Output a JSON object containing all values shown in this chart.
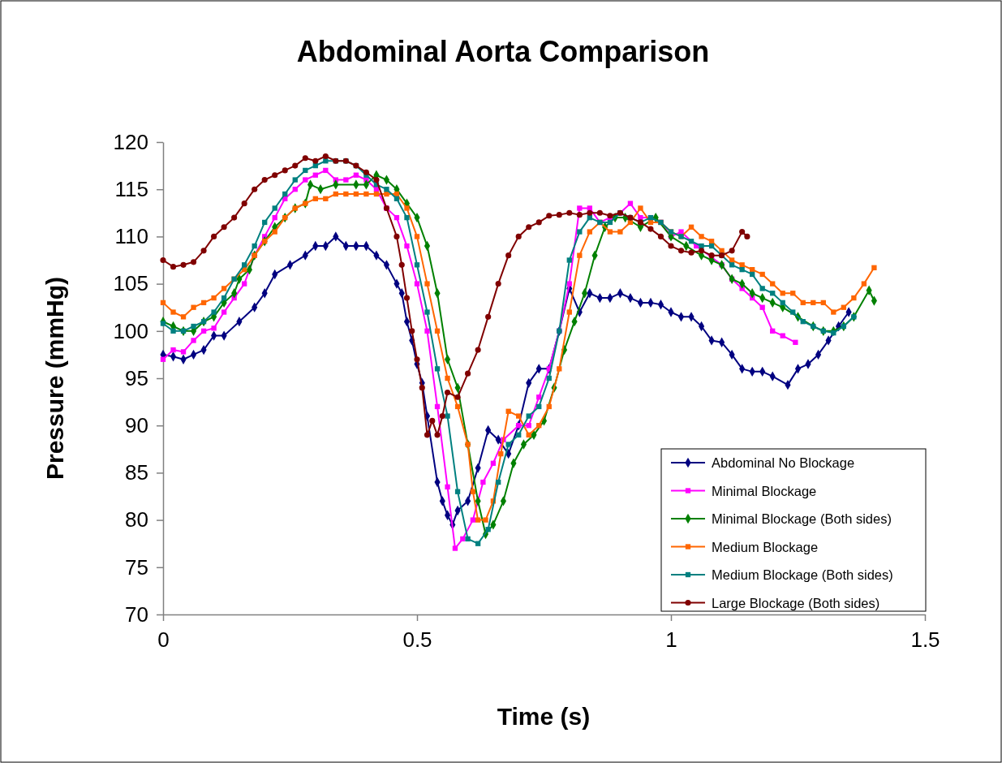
{
  "chart_data": {
    "type": "line",
    "title": "Abdominal Aorta Comparison",
    "xlabel": "Time (s)",
    "ylabel": "Pressure (mmHg)",
    "xlim": [
      0,
      1.5
    ],
    "xticks": [
      0,
      0.5,
      1,
      1.5
    ],
    "ylim": [
      70,
      120
    ],
    "yticks": [
      70,
      75,
      80,
      85,
      90,
      95,
      100,
      105,
      110,
      115,
      120
    ],
    "grid": false,
    "legend": "bottom right",
    "line_style": "solid",
    "series": [
      {
        "name": "Abdominal No Blockage",
        "color": "#000080",
        "marker": "diamond",
        "x": [
          0,
          0.02,
          0.04,
          0.06,
          0.08,
          0.1,
          0.12,
          0.15,
          0.18,
          0.2,
          0.22,
          0.25,
          0.28,
          0.3,
          0.32,
          0.34,
          0.36,
          0.38,
          0.4,
          0.42,
          0.44,
          0.46,
          0.47,
          0.48,
          0.49,
          0.5,
          0.51,
          0.52,
          0.54,
          0.55,
          0.56,
          0.57,
          0.58,
          0.6,
          0.62,
          0.64,
          0.66,
          0.68,
          0.7,
          0.72,
          0.74,
          0.76,
          0.78,
          0.8,
          0.82,
          0.84,
          0.86,
          0.88,
          0.9,
          0.92,
          0.94,
          0.96,
          0.98,
          1.0,
          1.02,
          1.04,
          1.06,
          1.08,
          1.1,
          1.12,
          1.14,
          1.16,
          1.18,
          1.2,
          1.23,
          1.25,
          1.27,
          1.29,
          1.31,
          1.33,
          1.35
        ],
        "values": [
          97.5,
          97.3,
          97,
          97.5,
          98,
          99.5,
          99.5,
          101,
          102.5,
          104,
          106,
          107,
          108,
          109,
          109,
          110,
          109,
          109,
          109,
          108,
          107,
          105,
          104,
          101,
          99,
          96.5,
          94.5,
          91,
          84,
          82,
          80.5,
          79.5,
          81,
          82,
          85.5,
          89.5,
          88.5,
          87,
          90,
          94.5,
          96,
          96,
          100,
          104.5,
          102,
          104,
          103.5,
          103.5,
          104,
          103.5,
          103,
          103,
          102.8,
          102,
          101.5,
          101.5,
          100.5,
          99,
          98.8,
          97.5,
          96,
          95.7,
          95.7,
          95.2,
          94.3,
          96,
          96.5,
          97.5,
          99,
          100.5,
          102
        ]
      },
      {
        "name": "Minimal Blockage",
        "color": "#ff00ff",
        "marker": "square",
        "x": [
          0,
          0.02,
          0.04,
          0.06,
          0.08,
          0.1,
          0.12,
          0.14,
          0.16,
          0.18,
          0.2,
          0.22,
          0.24,
          0.26,
          0.28,
          0.3,
          0.32,
          0.34,
          0.36,
          0.38,
          0.4,
          0.42,
          0.44,
          0.46,
          0.48,
          0.5,
          0.52,
          0.54,
          0.56,
          0.575,
          0.59,
          0.61,
          0.63,
          0.65,
          0.67,
          0.7,
          0.72,
          0.74,
          0.76,
          0.78,
          0.8,
          0.82,
          0.84,
          0.86,
          0.88,
          0.9,
          0.92,
          0.94,
          0.96,
          0.98,
          1.0,
          1.02,
          1.05,
          1.08,
          1.1,
          1.12,
          1.14,
          1.16,
          1.18,
          1.2,
          1.22,
          1.245
        ],
        "values": [
          97,
          98,
          97.8,
          99,
          100,
          100.3,
          102,
          103.5,
          105,
          108,
          110,
          112,
          114,
          115,
          116,
          116.5,
          117,
          116,
          116,
          116.5,
          116,
          115,
          113,
          112,
          109,
          105,
          100,
          92,
          83.5,
          77,
          78,
          80,
          84,
          86,
          88.5,
          90,
          90,
          93,
          96,
          100,
          105,
          113,
          113,
          111.5,
          112,
          112.5,
          113.5,
          112,
          112,
          111.5,
          110,
          110.5,
          109,
          107.8,
          107,
          105.5,
          104.5,
          103.5,
          102.5,
          100,
          99.5,
          98.8
        ]
      },
      {
        "name": "Minimal Blockage (Both sides)",
        "color": "#008000",
        "marker": "diamond",
        "x": [
          0,
          0.02,
          0.04,
          0.06,
          0.08,
          0.1,
          0.12,
          0.14,
          0.15,
          0.17,
          0.18,
          0.2,
          0.22,
          0.24,
          0.26,
          0.28,
          0.29,
          0.31,
          0.34,
          0.38,
          0.4,
          0.42,
          0.44,
          0.46,
          0.48,
          0.5,
          0.52,
          0.54,
          0.56,
          0.58,
          0.6,
          0.62,
          0.635,
          0.65,
          0.67,
          0.69,
          0.71,
          0.73,
          0.75,
          0.77,
          0.79,
          0.81,
          0.83,
          0.85,
          0.87,
          0.89,
          0.91,
          0.94,
          0.97,
          1.0,
          1.03,
          1.06,
          1.08,
          1.1,
          1.12,
          1.14,
          1.16,
          1.18,
          1.2,
          1.22,
          1.25,
          1.28,
          1.3,
          1.32,
          1.34,
          1.36,
          1.39,
          1.4
        ],
        "values": [
          101,
          100.5,
          100,
          100,
          101,
          101.5,
          103,
          104,
          105.5,
          106.5,
          108,
          109.5,
          111,
          112,
          113,
          113.5,
          115.5,
          115,
          115.5,
          115.5,
          115.5,
          116.5,
          116,
          115,
          113.5,
          112,
          109,
          104,
          97,
          94,
          88,
          82,
          78.5,
          79.5,
          82,
          86,
          88,
          89,
          90.5,
          94,
          98,
          101,
          104,
          108,
          111,
          112,
          112,
          111,
          112,
          110,
          109,
          108,
          107.5,
          107,
          105.5,
          105,
          104,
          103.5,
          103,
          102.5,
          101.5,
          100.5,
          100,
          100,
          100.5,
          101.5,
          104.3,
          103.2
        ]
      },
      {
        "name": "Medium Blockage",
        "color": "#ff6600",
        "marker": "square",
        "x": [
          0,
          0.02,
          0.04,
          0.06,
          0.08,
          0.1,
          0.12,
          0.14,
          0.16,
          0.18,
          0.2,
          0.22,
          0.24,
          0.26,
          0.28,
          0.3,
          0.32,
          0.34,
          0.36,
          0.38,
          0.4,
          0.42,
          0.44,
          0.46,
          0.48,
          0.5,
          0.52,
          0.54,
          0.56,
          0.58,
          0.6,
          0.61,
          0.62,
          0.635,
          0.65,
          0.665,
          0.68,
          0.7,
          0.72,
          0.74,
          0.76,
          0.78,
          0.8,
          0.82,
          0.84,
          0.86,
          0.88,
          0.9,
          0.92,
          0.94,
          0.96,
          0.98,
          1.0,
          1.02,
          1.04,
          1.06,
          1.08,
          1.1,
          1.12,
          1.14,
          1.16,
          1.18,
          1.2,
          1.22,
          1.24,
          1.26,
          1.28,
          1.3,
          1.32,
          1.34,
          1.36,
          1.38,
          1.4
        ],
        "values": [
          103,
          102,
          101.5,
          102.5,
          103,
          103.5,
          104.5,
          105.5,
          106.5,
          108,
          109.5,
          110.5,
          112,
          113,
          113.5,
          114,
          114,
          114.5,
          114.5,
          114.5,
          114.5,
          114.5,
          114.5,
          114.5,
          113,
          110,
          105,
          100,
          95,
          92,
          88,
          83,
          80,
          80,
          82,
          87,
          91.5,
          91,
          89,
          90,
          92,
          96,
          102,
          108,
          110.5,
          111.5,
          110.5,
          110.5,
          111.5,
          113,
          111.5,
          111.5,
          110.5,
          110,
          111,
          110,
          109.5,
          108.5,
          107.5,
          107,
          106.5,
          106,
          105,
          104,
          104,
          103,
          103,
          103,
          102,
          102.5,
          103.5,
          105,
          106.7
        ]
      },
      {
        "name": "Medium Blockage (Both sides)",
        "color": "#008080",
        "marker": "square",
        "x": [
          0,
          0.02,
          0.04,
          0.06,
          0.08,
          0.1,
          0.12,
          0.14,
          0.16,
          0.18,
          0.2,
          0.22,
          0.24,
          0.26,
          0.28,
          0.3,
          0.32,
          0.34,
          0.36,
          0.38,
          0.4,
          0.42,
          0.44,
          0.46,
          0.48,
          0.5,
          0.52,
          0.54,
          0.56,
          0.58,
          0.6,
          0.62,
          0.64,
          0.66,
          0.68,
          0.7,
          0.72,
          0.74,
          0.76,
          0.78,
          0.8,
          0.82,
          0.84,
          0.86,
          0.88,
          0.9,
          0.92,
          0.94,
          0.96,
          0.98,
          1.0,
          1.02,
          1.04,
          1.06,
          1.08,
          1.1,
          1.12,
          1.14,
          1.16,
          1.18,
          1.2,
          1.22,
          1.24,
          1.26,
          1.28,
          1.3,
          1.32,
          1.34,
          1.36
        ],
        "values": [
          100.8,
          100,
          100,
          100.5,
          101,
          102,
          103.5,
          105.5,
          107,
          109,
          111.5,
          113,
          114.5,
          116,
          117,
          117.5,
          118,
          118,
          118,
          117.5,
          116.5,
          115.5,
          115,
          114,
          112,
          107,
          102,
          96,
          91,
          83,
          78,
          77.5,
          79,
          84,
          88,
          89,
          91,
          92,
          95,
          100,
          107.5,
          110.5,
          112,
          111.5,
          111.5,
          112.5,
          112,
          111.5,
          112,
          111.5,
          110.5,
          110,
          109.5,
          109,
          109,
          108,
          107,
          106.5,
          106,
          104.5,
          104,
          103,
          102,
          101,
          100.5,
          100,
          99.8,
          100.5,
          101.5
        ]
      },
      {
        "name": "Large Blockage (Both sides)",
        "color": "#800000",
        "marker": "circle",
        "x": [
          0,
          0.02,
          0.04,
          0.06,
          0.08,
          0.1,
          0.12,
          0.14,
          0.16,
          0.18,
          0.2,
          0.22,
          0.24,
          0.26,
          0.28,
          0.3,
          0.32,
          0.34,
          0.36,
          0.38,
          0.4,
          0.42,
          0.44,
          0.46,
          0.47,
          0.48,
          0.49,
          0.5,
          0.51,
          0.52,
          0.53,
          0.54,
          0.55,
          0.56,
          0.58,
          0.6,
          0.62,
          0.64,
          0.66,
          0.68,
          0.7,
          0.72,
          0.74,
          0.76,
          0.78,
          0.8,
          0.82,
          0.84,
          0.86,
          0.88,
          0.9,
          0.92,
          0.94,
          0.96,
          0.98,
          1.0,
          1.02,
          1.04,
          1.06,
          1.08,
          1.1,
          1.12,
          1.14,
          1.15
        ],
        "values": [
          107.5,
          106.8,
          107,
          107.3,
          108.5,
          110,
          111,
          112,
          113.5,
          115,
          116,
          116.5,
          117,
          117.5,
          118.3,
          118,
          118.5,
          118,
          118,
          117.5,
          116.8,
          116,
          113,
          110,
          107,
          103.5,
          100,
          97,
          94,
          89,
          90.5,
          89,
          91,
          93.5,
          93,
          95.5,
          98,
          101.5,
          105,
          108,
          110,
          111,
          111.5,
          112.2,
          112.3,
          112.5,
          112.3,
          112.5,
          112.5,
          112.2,
          112.5,
          112,
          111.5,
          110.8,
          110,
          109,
          108.5,
          108.3,
          108.5,
          108,
          108,
          108.5,
          110.5,
          110
        ]
      }
    ]
  }
}
